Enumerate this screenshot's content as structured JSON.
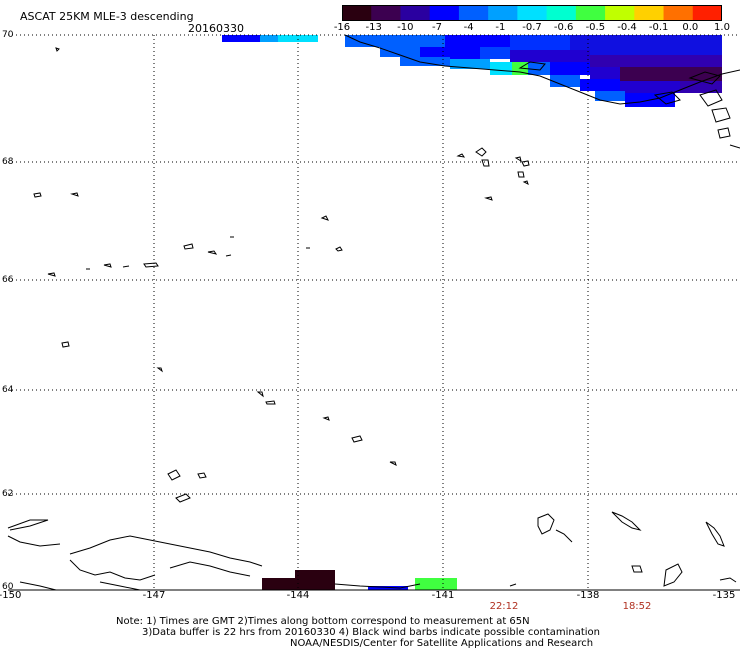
{
  "header": {
    "title": "ASCAT 25KM MLE-3 descending",
    "date": "20160330"
  },
  "colorbar": {
    "labels": [
      "-16",
      "-13",
      "-10",
      "-7",
      "-4",
      "-1",
      "-0.7",
      "-0.6",
      "-0.5",
      "-0.4",
      "-0.1",
      "0.0",
      "1.0"
    ],
    "colors": [
      "#2a0010",
      "#3c0050",
      "#2a00a0",
      "#0000ff",
      "#0060ff",
      "#00a0ff",
      "#00e0ff",
      "#00ffd0",
      "#40ff40",
      "#c0ff00",
      "#ffd000",
      "#ff7000",
      "#ff2000"
    ]
  },
  "axes": {
    "lat_labels": [
      "70",
      "68",
      "66",
      "64",
      "62",
      "60"
    ],
    "lon_labels": [
      "-150",
      "-147",
      "-144",
      "-141",
      "-138",
      "-135"
    ]
  },
  "times": [
    "22:12",
    "18:52"
  ],
  "notes": {
    "line1": "Note: 1) Times are GMT 2)Times along bottom correspond to measurement at 65N",
    "line2": "3)Data buffer is 22 hrs from 20160330 4) Black wind barbs indicate possible contamination",
    "line3": "NOAA/NESDIS/Center for Satellite Applications and Research"
  },
  "colors": {
    "coast": "#000000",
    "grid": "#000000",
    "time_text": "#b03020"
  }
}
